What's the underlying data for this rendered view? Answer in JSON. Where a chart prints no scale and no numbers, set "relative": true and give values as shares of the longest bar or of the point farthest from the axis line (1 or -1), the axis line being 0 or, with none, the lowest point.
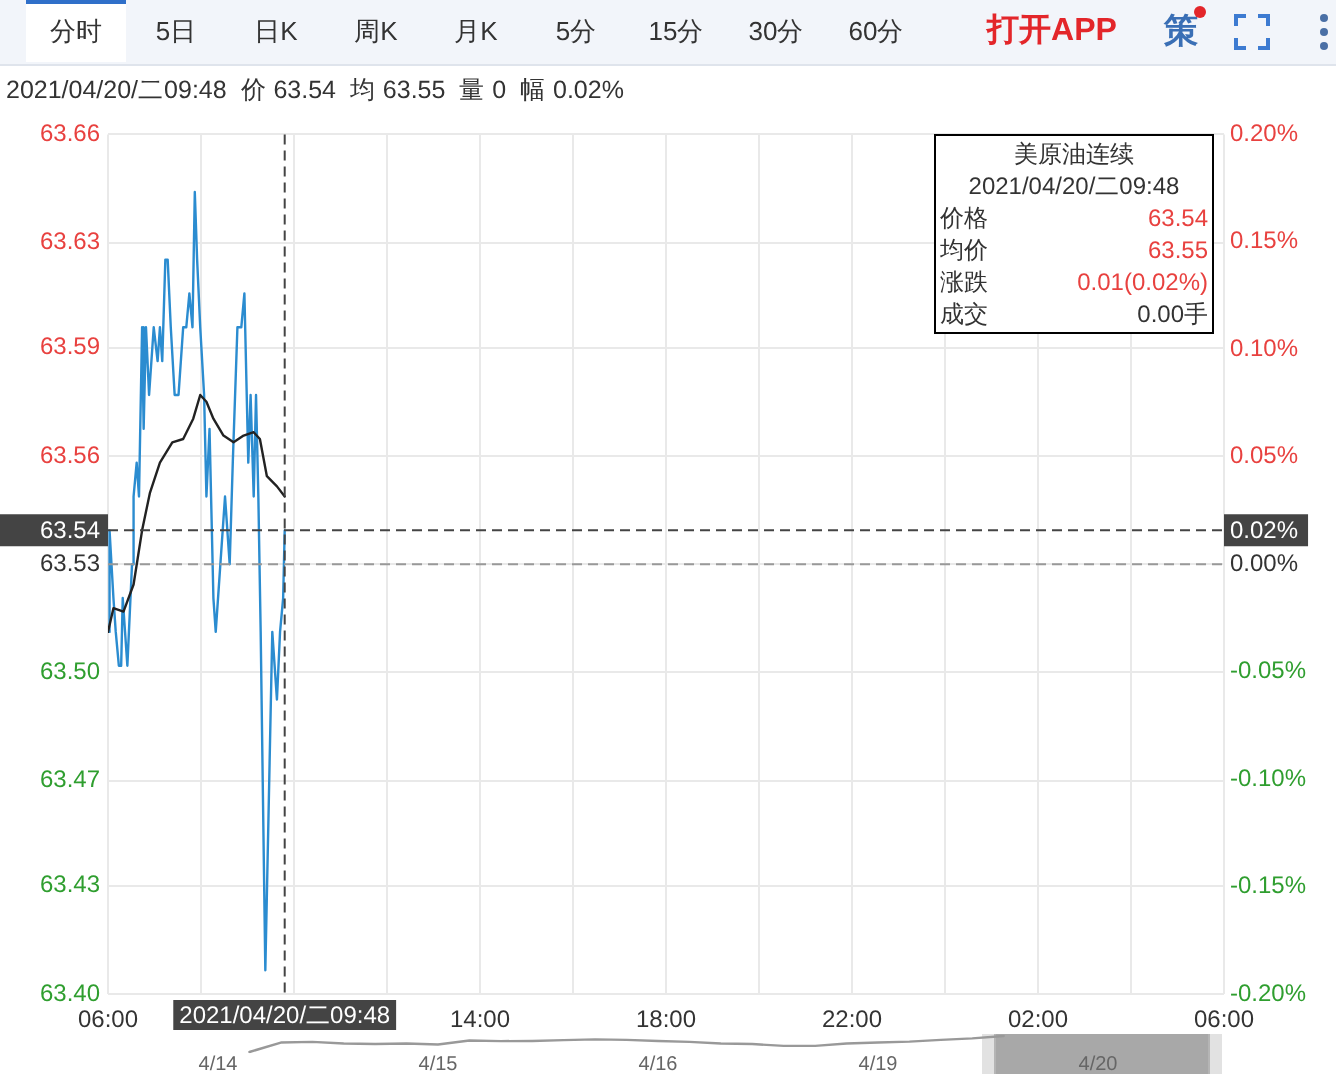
{
  "chart_data": [
    {
      "type": "line",
      "subtitle": "2021/04/20/二09:48  价 63.54  均 63.55  量 0  幅 0.02%",
      "series": [
        {
          "color": "#2b8cd0",
          "x": [
            "2021-04-20T06:00",
            "2021-04-20T06:02",
            "2021-04-20T06:07",
            "2021-04-20T06:10",
            "2021-04-20T06:14",
            "2021-04-20T06:17",
            "2021-04-20T06:19",
            "2021-04-20T06:22",
            "2021-04-20T06:25",
            "2021-04-20T06:27",
            "2021-04-20T06:31",
            "2021-04-20T06:33",
            "2021-04-20T06:37",
            "2021-04-20T06:40",
            "2021-04-20T06:44",
            "2021-04-20T06:46",
            "2021-04-20T06:49",
            "2021-04-20T06:53",
            "2021-04-20T06:59",
            "2021-04-20T07:04",
            "2021-04-20T07:07",
            "2021-04-20T07:10",
            "2021-04-20T07:14",
            "2021-04-20T07:17",
            "2021-04-20T07:21",
            "2021-04-20T07:26",
            "2021-04-20T07:31",
            "2021-04-20T07:37",
            "2021-04-20T07:41",
            "2021-04-20T07:45",
            "2021-04-20T07:49",
            "2021-04-20T07:52",
            "2021-04-20T07:55",
            "2021-04-20T07:59",
            "2021-04-20T08:04",
            "2021-04-20T08:07",
            "2021-04-20T08:11",
            "2021-04-20T08:16",
            "2021-04-20T08:19",
            "2021-04-20T08:25",
            "2021-04-20T08:31",
            "2021-04-20T08:37",
            "2021-04-20T08:41",
            "2021-04-20T08:47",
            "2021-04-20T08:52",
            "2021-04-20T08:56",
            "2021-04-20T09:01",
            "2021-04-20T09:04",
            "2021-04-20T09:08",
            "2021-04-20T09:11",
            "2021-04-20T09:14",
            "2021-04-20T09:17",
            "2021-04-20T09:23",
            "2021-04-20T09:32",
            "2021-04-20T09:38",
            "2021-04-20T09:42",
            "2021-04-20T09:46",
            "2021-04-20T09:48"
          ],
          "values": [
            63.51,
            63.54,
            63.52,
            63.51,
            63.5,
            63.5,
            63.52,
            63.51,
            63.5,
            63.51,
            63.53,
            63.55,
            63.56,
            63.55,
            63.6,
            63.57,
            63.6,
            63.58,
            63.6,
            63.59,
            63.6,
            63.59,
            63.62,
            63.62,
            63.6,
            63.58,
            63.58,
            63.6,
            63.6,
            63.61,
            63.6,
            63.64,
            63.62,
            63.6,
            63.58,
            63.55,
            63.57,
            63.52,
            63.51,
            63.53,
            63.55,
            63.53,
            63.56,
            63.6,
            63.6,
            63.61,
            63.56,
            63.58,
            63.55,
            63.58,
            63.55,
            63.51,
            63.41,
            63.51,
            63.49,
            63.51,
            63.52,
            63.54
          ]
        },
        {
          "color": "#222222",
          "x": [
            "2021-04-20T06:00",
            "2021-04-20T06:07",
            "2021-04-20T06:20",
            "2021-04-20T06:33",
            "2021-04-20T06:44",
            "2021-04-20T06:54",
            "2021-04-20T07:07",
            "2021-04-20T07:23",
            "2021-04-20T07:37",
            "2021-04-20T07:50",
            "2021-04-20T07:59",
            "2021-04-20T08:07",
            "2021-04-20T08:16",
            "2021-04-20T08:29",
            "2021-04-20T08:42",
            "2021-04-20T08:55",
            "2021-04-20T09:08",
            "2021-04-20T09:16",
            "2021-04-20T09:25",
            "2021-04-20T09:38",
            "2021-04-20T09:48"
          ],
          "values": [
            63.51,
            63.517,
            63.516,
            63.524,
            63.54,
            63.551,
            63.56,
            63.566,
            63.567,
            63.573,
            63.58,
            63.578,
            63.573,
            63.568,
            63.566,
            63.568,
            63.569,
            63.567,
            63.556,
            63.553,
            63.55
          ]
        }
      ],
      "xlim": [
        "2021-04-20T06:00",
        "2021-04-21T06:00"
      ],
      "xticks": [
        {
          "value": "2021-04-20T06:00",
          "label": "06:00"
        },
        {
          "value": "2021-04-20T08:00",
          "label": null
        },
        {
          "value": "2021-04-20T10:00",
          "label": null
        },
        {
          "value": "2021-04-20T12:00",
          "label": null
        },
        {
          "value": "2021-04-20T14:00",
          "label": "14:00"
        },
        {
          "value": "2021-04-20T16:00",
          "label": null
        },
        {
          "value": "2021-04-20T18:00",
          "label": "18:00"
        },
        {
          "value": "2021-04-20T20:00",
          "label": null
        },
        {
          "value": "2021-04-20T22:00",
          "label": "22:00"
        },
        {
          "value": "2021-04-21T00:00",
          "label": null
        },
        {
          "value": "2021-04-21T02:00",
          "label": "02:00"
        },
        {
          "value": "2021-04-21T04:00",
          "label": null
        },
        {
          "value": "2021-04-21T06:00",
          "label": "06:00"
        }
      ],
      "ylim": [
        63.403,
        63.657
      ],
      "yticks": [
        {
          "value": 63.403,
          "label": "63.40"
        },
        {
          "value": 63.435,
          "label": "63.43"
        },
        {
          "value": 63.466,
          "label": "63.47"
        },
        {
          "value": 63.498,
          "label": "63.50"
        },
        63.53,
        {
          "value": 63.562,
          "label": "63.56"
        },
        {
          "value": 63.594,
          "label": "63.59"
        },
        {
          "value": 63.625,
          "label": "63.63"
        },
        {
          "value": 63.657,
          "label": "63.66"
        }
      ],
      "y2lim": [
        -0.2,
        0.2
      ],
      "y2ticks": [
        {
          "value": -0.2,
          "label": "-0.20%"
        },
        {
          "value": -0.15,
          "label": "-0.15%"
        },
        {
          "value": -0.1,
          "label": "-0.10%"
        },
        {
          "value": -0.05,
          "label": "-0.05%"
        },
        {
          "value": 0,
          "label": "0.00%"
        },
        {
          "value": 0.05,
          "label": "0.05%"
        },
        {
          "value": 0.1,
          "label": "0.10%"
        },
        {
          "value": 0.15,
          "label": "0.15%"
        },
        {
          "value": 0.2,
          "label": "0.20%"
        }
      ],
      "grid": true,
      "ref_lines": [
        {
          "axis": "y",
          "value": 63.53,
          "color": "#999999",
          "line_style": "dashed"
        },
        {
          "axis": "x",
          "value": "2021-04-20T09:48",
          "label": "2021/04/20/二09:48",
          "color": "#444444",
          "line_style": "dashed"
        },
        {
          "axis": "y",
          "value": 63.54,
          "label": "63.54",
          "color": "#444444",
          "line_style": "dashed"
        }
      ],
      "annotations": [
        "分时",
        "5日",
        "日K",
        "周K",
        "月K",
        "5分",
        "15分",
        "30分",
        "60分",
        "打开APP",
        "策",
        "美原油连续",
        "2021/04/20/二09:48",
        "价格",
        "63.54",
        "均价",
        "63.55",
        "涨跌",
        "0.01(0.02%)",
        "成交",
        "0.00手",
        {
          "text": "0.02%",
          "x": "2021-04-21T06:00",
          "y": 63.54
        }
      ]
    },
    {
      "type": "line",
      "relative": true,
      "color": "#999999",
      "categories": [
        null,
        null,
        null,
        "4/14",
        null,
        null,
        null,
        null,
        null,
        null,
        "4/15",
        null,
        null,
        null,
        null,
        null,
        null,
        "4/16",
        null,
        null,
        null,
        null,
        null,
        null,
        "4/19",
        null,
        null,
        null,
        null,
        null,
        null,
        "4/20",
        null,
        null,
        null
      ],
      "values": [
        null,
        null,
        null,
        null,
        0,
        0.59,
        0.63,
        0.53,
        0.5,
        0.53,
        0.47,
        0.72,
        0.68,
        0.69,
        0.74,
        0.79,
        0.76,
        0.69,
        0.63,
        0.53,
        0.5,
        0.38,
        0.38,
        0.53,
        0.59,
        0.65,
        0.76,
        0.85,
        1,
        null,
        null,
        null,
        null,
        null,
        null
      ]
    }
  ]
}
